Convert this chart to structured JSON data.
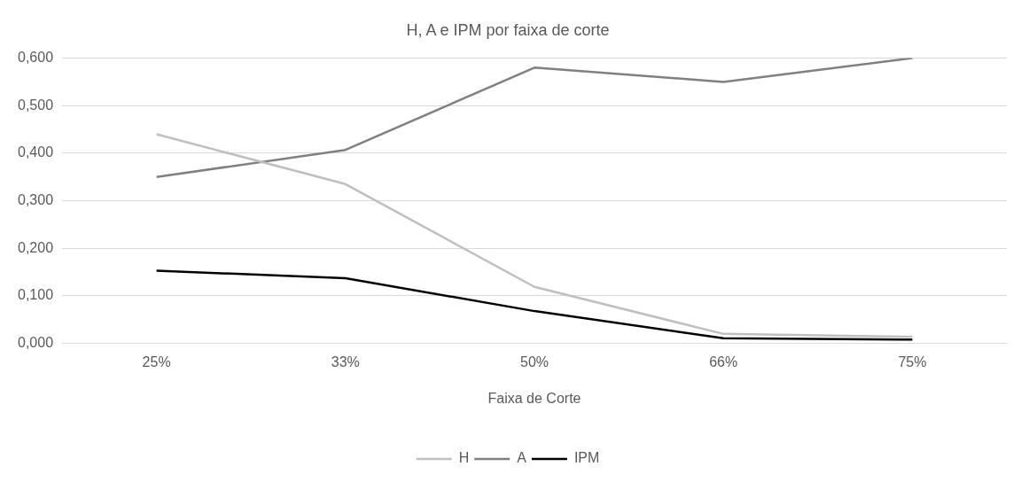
{
  "chart_data": {
    "type": "line",
    "title": "H, A e IPM por faixa de corte",
    "xlabel": "Faixa de Corte",
    "categories": [
      "25%",
      "33%",
      "50%",
      "66%",
      "75%"
    ],
    "series": [
      {
        "name": "H",
        "color": "#bfbfbf",
        "values": [
          0.44,
          0.335,
          0.119,
          0.02,
          0.014
        ]
      },
      {
        "name": "A",
        "color": "#808080",
        "values": [
          0.35,
          0.407,
          0.58,
          0.55,
          0.6
        ]
      },
      {
        "name": "IPM",
        "color": "#000000",
        "values": [
          0.153,
          0.137,
          0.068,
          0.011,
          0.008
        ]
      }
    ],
    "ylim": [
      0,
      0.6
    ],
    "yticks": [
      {
        "value": 0,
        "label": "0,000"
      },
      {
        "value": 0.1,
        "label": "0,100"
      },
      {
        "value": 0.2,
        "label": "0,200"
      },
      {
        "value": 0.3,
        "label": "0,300"
      },
      {
        "value": 0.4,
        "label": "0,400"
      },
      {
        "value": 0.5,
        "label": "0,500"
      },
      {
        "value": 0.6,
        "label": "0,600"
      }
    ],
    "grid": "y",
    "legend": "bottom",
    "marker": "none",
    "line_style": "solid"
  }
}
